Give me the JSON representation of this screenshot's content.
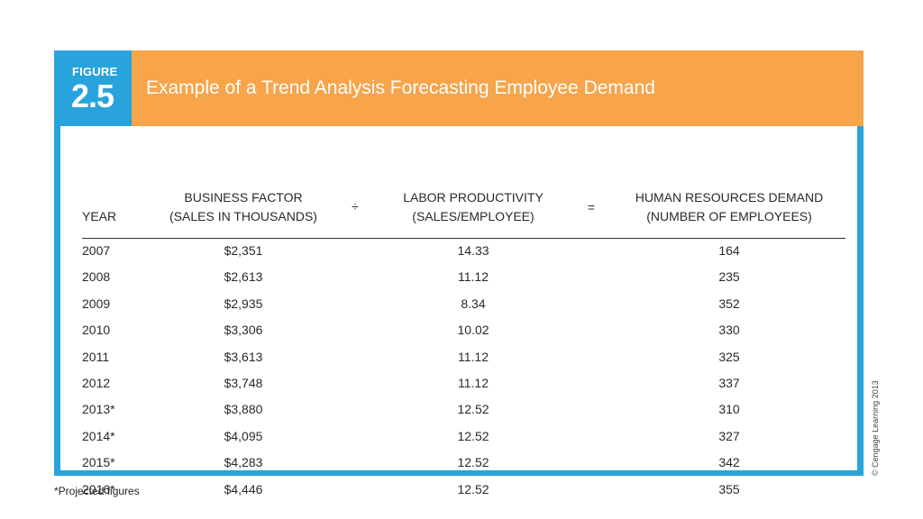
{
  "figure": {
    "label": "FIGURE",
    "number": "2.5",
    "title": "Example of a Trend Analysis Forecasting Employee Demand"
  },
  "table": {
    "headers": {
      "year": "YEAR",
      "business_factor_line1": "BUSINESS FACTOR",
      "business_factor_line2": "(SALES IN THOUSANDS)",
      "divide_sign": "÷",
      "labor_productivity_line1": "LABOR PRODUCTIVITY",
      "labor_productivity_line2": "(SALES/EMPLOYEE)",
      "equals_sign": "=",
      "hr_demand_line1": "HUMAN RESOURCES DEMAND",
      "hr_demand_line2": "(NUMBER OF EMPLOYEES)"
    },
    "rows": [
      {
        "year": "2007",
        "sales": "$2,351",
        "productivity": "14.33",
        "demand": "164"
      },
      {
        "year": "2008",
        "sales": "$2,613",
        "productivity": "11.12",
        "demand": "235"
      },
      {
        "year": "2009",
        "sales": "$2,935",
        "productivity": "8.34",
        "demand": "352"
      },
      {
        "year": "2010",
        "sales": "$3,306",
        "productivity": "10.02",
        "demand": "330"
      },
      {
        "year": "2011",
        "sales": "$3,613",
        "productivity": "11.12",
        "demand": "325"
      },
      {
        "year": "2012",
        "sales": "$3,748",
        "productivity": "11.12",
        "demand": "337"
      },
      {
        "year": "2013*",
        "sales": "$3,880",
        "productivity": "12.52",
        "demand": "310"
      },
      {
        "year": "2014*",
        "sales": "$4,095",
        "productivity": "12.52",
        "demand": "327"
      },
      {
        "year": "2015*",
        "sales": "$4,283",
        "productivity": "12.52",
        "demand": "342"
      },
      {
        "year": "2016*",
        "sales": "$4,446",
        "productivity": "12.52",
        "demand": "355"
      }
    ]
  },
  "footnote": "*Projected figures",
  "copyright": "© Cengage Learning 2013",
  "colors": {
    "frame_blue": "#29a3dc",
    "title_orange": "#f7a44a"
  }
}
